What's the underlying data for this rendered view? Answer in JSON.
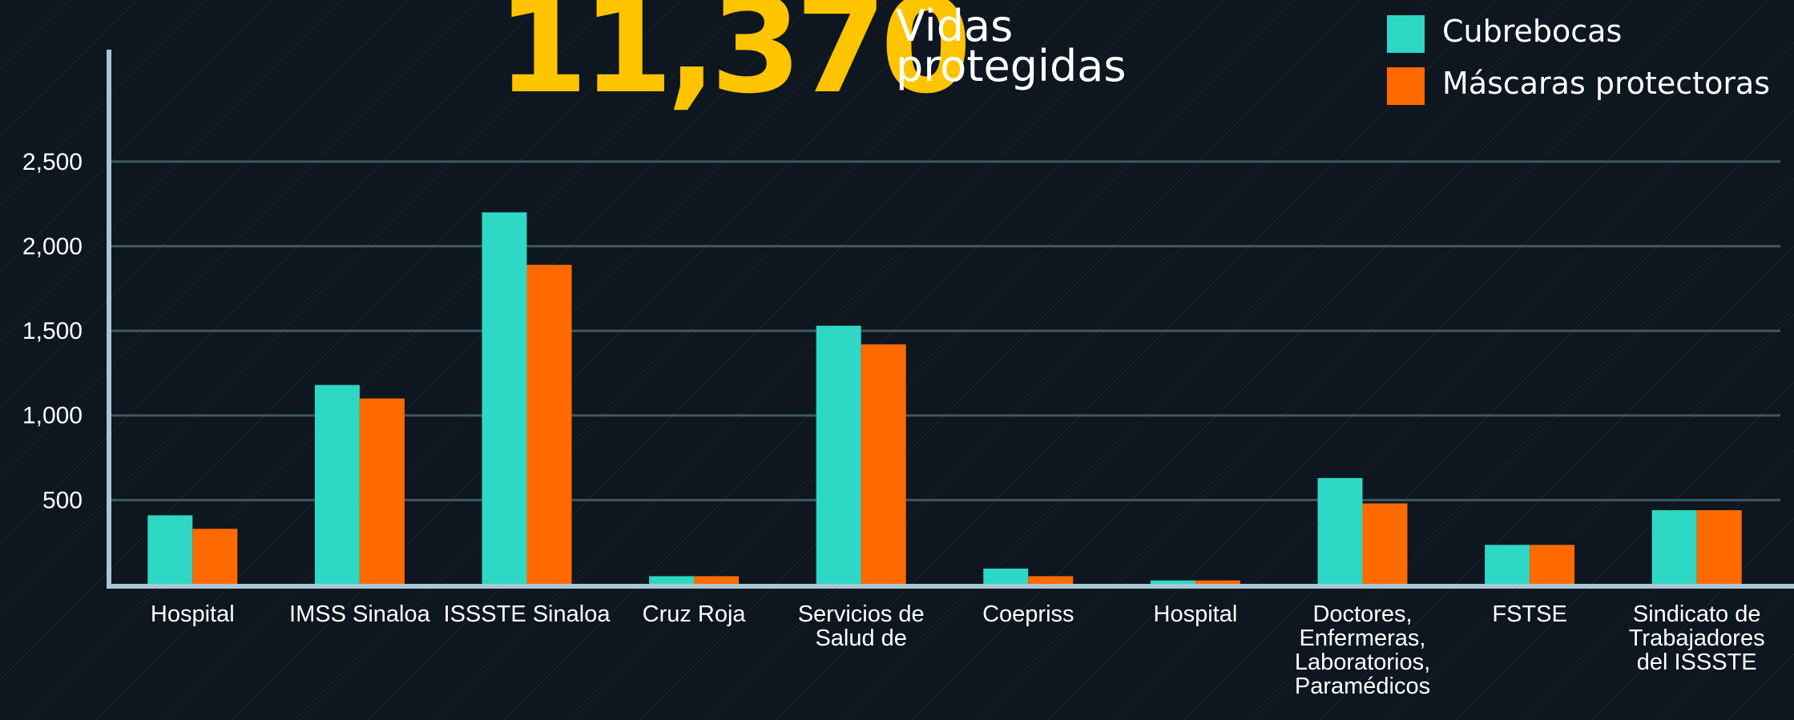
{
  "chart_data": {
    "type": "bar",
    "title": "11,370",
    "subtitle": "Vidas\nprotegidas",
    "categories": [
      "Hospital",
      "IMSS Sinaloa",
      "ISSSTE Sinaloa",
      "Cruz Roja",
      "Servicios de\nSalud de",
      "Coepriss",
      "Hospital",
      "Doctores,\nEnfermeras,\nLaboratorios,\nParamédicos",
      "FSTSE",
      "Sindicato de\nTrabajadores\ndel ISSSTE"
    ],
    "series": [
      {
        "name": "Cubrebocas",
        "color": "#2dd8c5",
        "values": [
          410,
          1180,
          2200,
          50,
          1530,
          95,
          25,
          630,
          235,
          440
        ]
      },
      {
        "name": "Máscaras protectoras",
        "color": "#ff6a00",
        "values": [
          330,
          1100,
          1890,
          50,
          1420,
          50,
          25,
          480,
          235,
          440
        ]
      }
    ],
    "ylim": [
      0,
      3100
    ],
    "yticks": [
      500,
      {
        "value": 1000,
        "label": "1,000"
      },
      {
        "value": 1500,
        "label": "1,500"
      },
      {
        "value": 2000,
        "label": "2,000"
      },
      {
        "value": 2500,
        "label": "2,500"
      }
    ],
    "grid": true,
    "legend": "top-right"
  }
}
